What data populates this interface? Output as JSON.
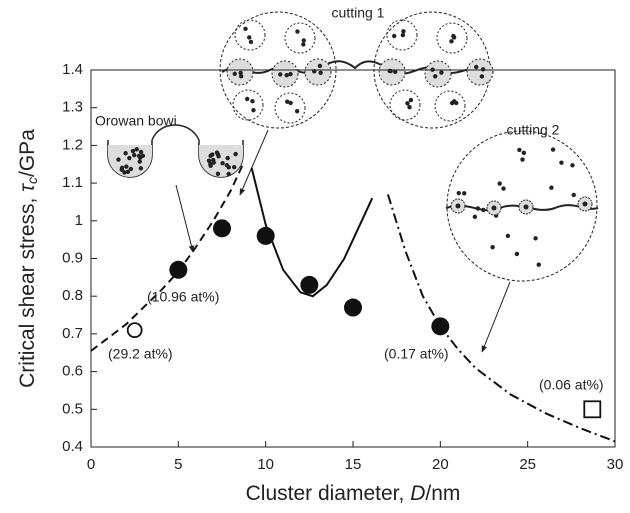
{
  "chart_data": {
    "type": "scatter",
    "xlabel_parts": [
      "Cluster diameter, ",
      "D",
      "/nm"
    ],
    "ylabel_parts": [
      "Critical shear stress, ",
      "τ",
      "c",
      "/GPa"
    ],
    "xlim": [
      0,
      30
    ],
    "xticks": [
      0,
      5,
      10,
      15,
      20,
      25,
      30
    ],
    "ylim": [
      0.4,
      1.4
    ],
    "yticks": [
      0.4,
      0.5,
      0.6,
      0.7,
      0.8,
      0.9,
      1,
      1.1,
      1.2,
      1.3,
      1.4
    ],
    "series": [
      {
        "marker": "filled-circle",
        "color": "#111111",
        "x": [
          5,
          7.5,
          10,
          12.5,
          15,
          20
        ],
        "values": [
          0.87,
          0.98,
          0.96,
          0.83,
          0.77,
          0.72
        ]
      },
      {
        "marker": "open-circle",
        "color": "#111111",
        "x": [
          2.5
        ],
        "values": [
          0.71
        ]
      },
      {
        "marker": "open-square",
        "color": "#111111",
        "x": [
          28.7
        ],
        "values": [
          0.5
        ]
      }
    ],
    "curves": [
      {
        "dash": "dashed",
        "x": [
          0,
          1,
          2,
          3,
          4,
          5,
          6,
          7,
          8,
          8.7
        ],
        "values": [
          0.655,
          0.69,
          0.725,
          0.77,
          0.815,
          0.865,
          0.93,
          1.0,
          1.08,
          1.15
        ]
      },
      {
        "dash": "solid",
        "x": [
          9.2,
          10,
          11,
          12,
          12.7,
          13.5,
          14.5,
          15.5,
          16.1
        ],
        "values": [
          1.14,
          0.99,
          0.87,
          0.81,
          0.8,
          0.83,
          0.9,
          1.0,
          1.06
        ]
      },
      {
        "dash": "dash-dot",
        "x": [
          17,
          18,
          19,
          20,
          21,
          22,
          24,
          26,
          28,
          30
        ],
        "values": [
          1.07,
          0.92,
          0.8,
          0.72,
          0.66,
          0.61,
          0.54,
          0.49,
          0.45,
          0.415
        ]
      }
    ],
    "annotations": [
      "(10.96 at%)",
      "(29.2 at%)",
      "(0.17 at%)",
      "(0.06 at%)",
      "Orowan bowi",
      "cutting 1",
      "cutting 2"
    ]
  }
}
